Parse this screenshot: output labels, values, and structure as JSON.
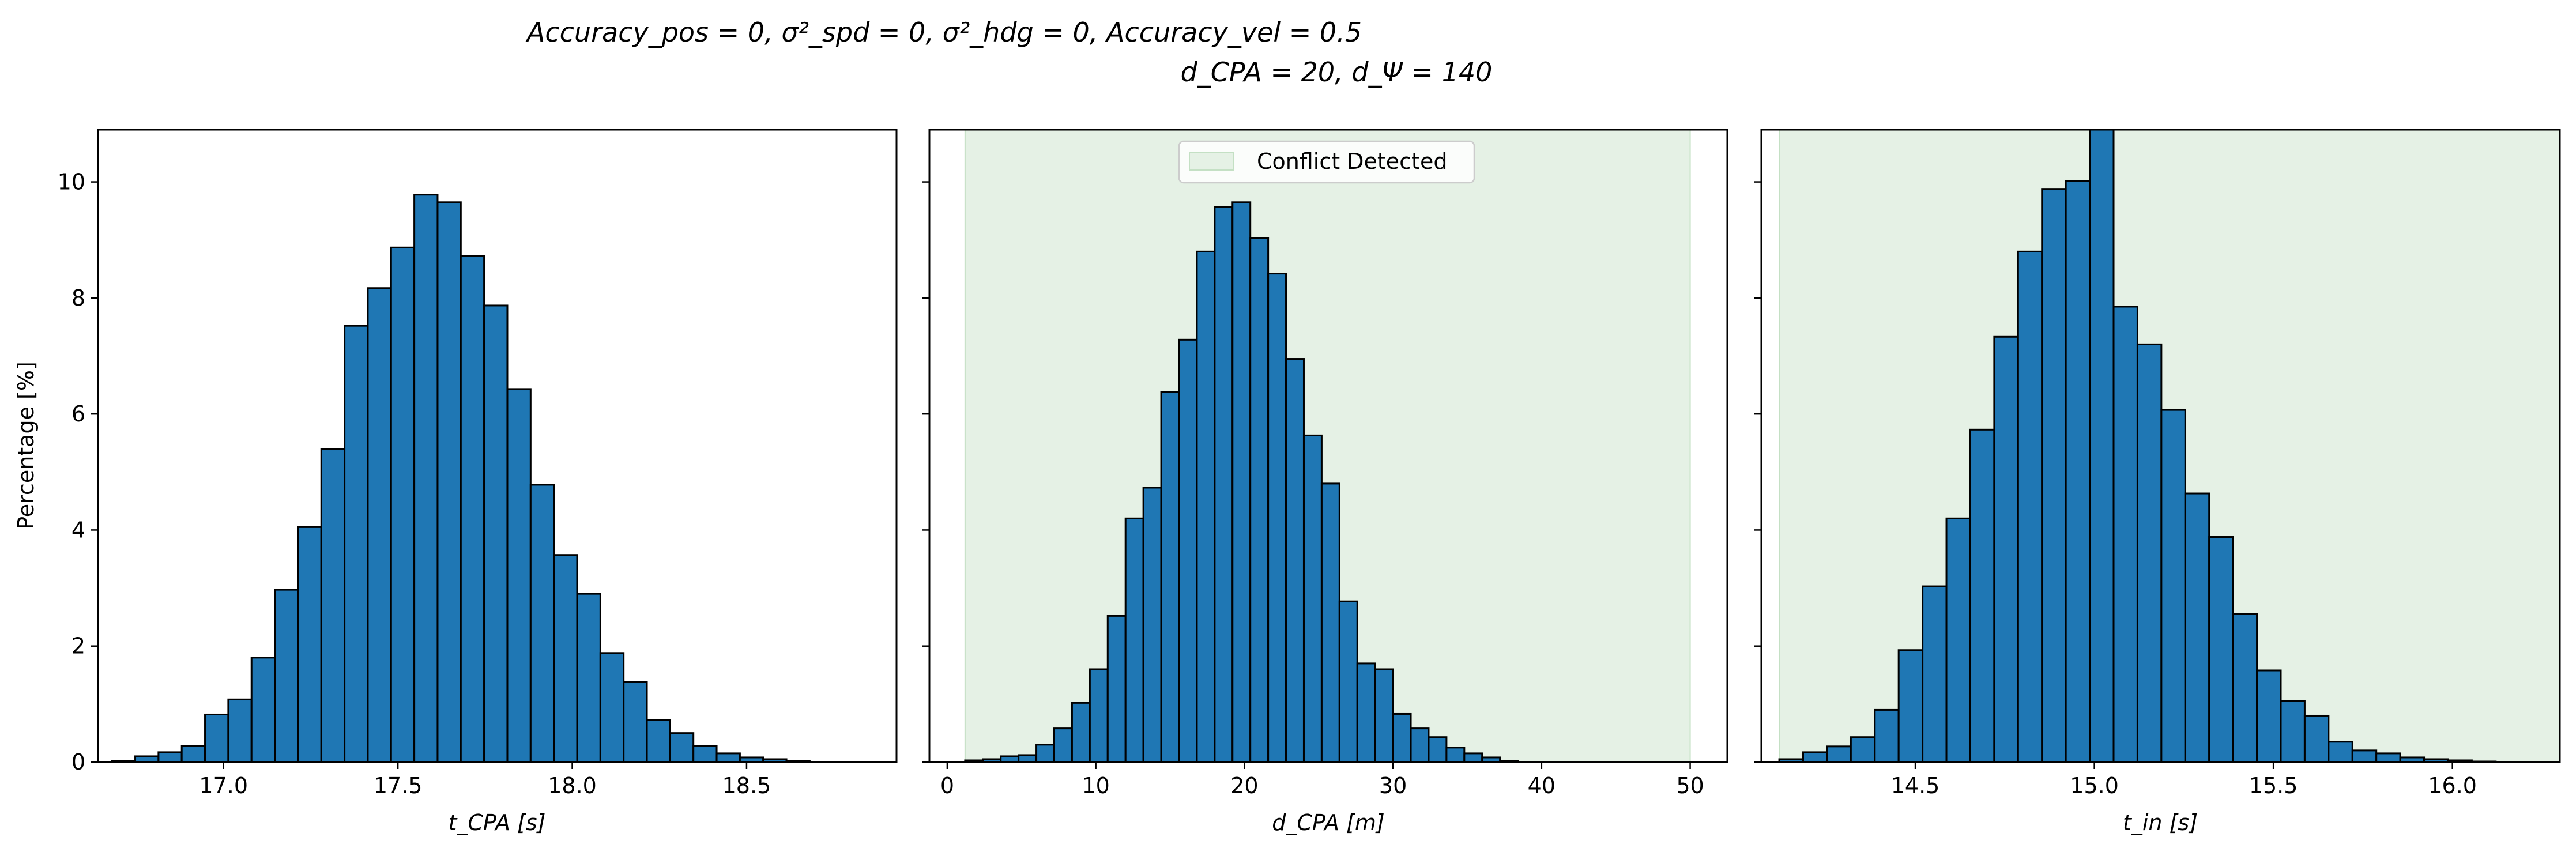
{
  "figure": {
    "title_line1": "Accuracy_pos = 0, σ²_spd = 0, σ²_hdg = 0, Accuracy_vel = 0.5",
    "title_line2": "d_CPA = 20, d_Ψ = 140"
  },
  "colors": {
    "bar_fill": "#1f77b4",
    "bar_edge": "#000000",
    "conflict_fill": "#e5f1e5",
    "conflict_edge": "#c4e0c4"
  },
  "chart_data": [
    {
      "type": "bar",
      "xlabel": "t_CPA [s]",
      "ylabel": "Percentage [%]",
      "xlim": [
        16.64,
        18.93
      ],
      "ylim": [
        0,
        10.9
      ],
      "xticks": [
        17.0,
        17.5,
        18.0,
        18.5
      ],
      "xtick_labels": [
        "17.0",
        "17.5",
        "18.0",
        "18.5"
      ],
      "yticks": [
        0,
        2,
        4,
        6,
        8,
        10
      ],
      "ytick_labels": [
        "0",
        "2",
        "4",
        "6",
        "8",
        "10"
      ],
      "bin_start": 16.68,
      "bin_width": 0.0667,
      "values": [
        0.02,
        0.1,
        0.17,
        0.28,
        0.82,
        1.08,
        1.8,
        2.97,
        4.05,
        5.4,
        7.52,
        8.17,
        8.87,
        9.78,
        9.65,
        8.72,
        7.87,
        6.43,
        4.78,
        3.57,
        2.9,
        1.88,
        1.38,
        0.73,
        0.5,
        0.28,
        0.15,
        0.08,
        0.05,
        0.02
      ]
    },
    {
      "type": "bar",
      "xlabel": "d_CPA [m]",
      "ylim": [
        0,
        10.9
      ],
      "xlim": [
        -1.2,
        52.5
      ],
      "xticks": [
        0,
        10,
        20,
        30,
        40,
        50
      ],
      "xtick_labels": [
        "0",
        "10",
        "20",
        "30",
        "40",
        "50"
      ],
      "bin_start": 1.2,
      "bin_width": 1.2,
      "values": [
        0.03,
        0.05,
        0.1,
        0.12,
        0.3,
        0.58,
        1.02,
        1.6,
        2.52,
        4.2,
        4.73,
        6.38,
        7.28,
        8.8,
        9.57,
        9.65,
        9.03,
        8.42,
        6.95,
        5.63,
        4.8,
        2.77,
        1.7,
        1.6,
        0.83,
        0.58,
        0.43,
        0.25,
        0.15,
        0.08,
        0.02
      ],
      "conflict_span": [
        1.2,
        50
      ],
      "legend": {
        "label": "Conflict Detected",
        "location": "upper center"
      }
    },
    {
      "type": "bar",
      "xlabel": "t_in [s]",
      "ylim": [
        0,
        10.9
      ],
      "xlim": [
        14.07,
        16.3
      ],
      "xticks": [
        14.5,
        15.0,
        15.5,
        16.0
      ],
      "xtick_labels": [
        "14.5",
        "15.0",
        "15.5",
        "16.0"
      ],
      "bin_start": 14.12,
      "bin_width": 0.0667,
      "values": [
        0.05,
        0.17,
        0.27,
        0.43,
        0.9,
        1.93,
        3.03,
        4.2,
        5.73,
        7.33,
        8.8,
        9.88,
        10.02,
        11.8,
        7.85,
        7.2,
        6.07,
        4.63,
        3.88,
        2.55,
        1.58,
        1.05,
        0.8,
        0.35,
        0.2,
        0.15,
        0.08,
        0.05,
        0.03,
        0.01
      ],
      "conflict_span": [
        14.12,
        16.3
      ]
    }
  ]
}
